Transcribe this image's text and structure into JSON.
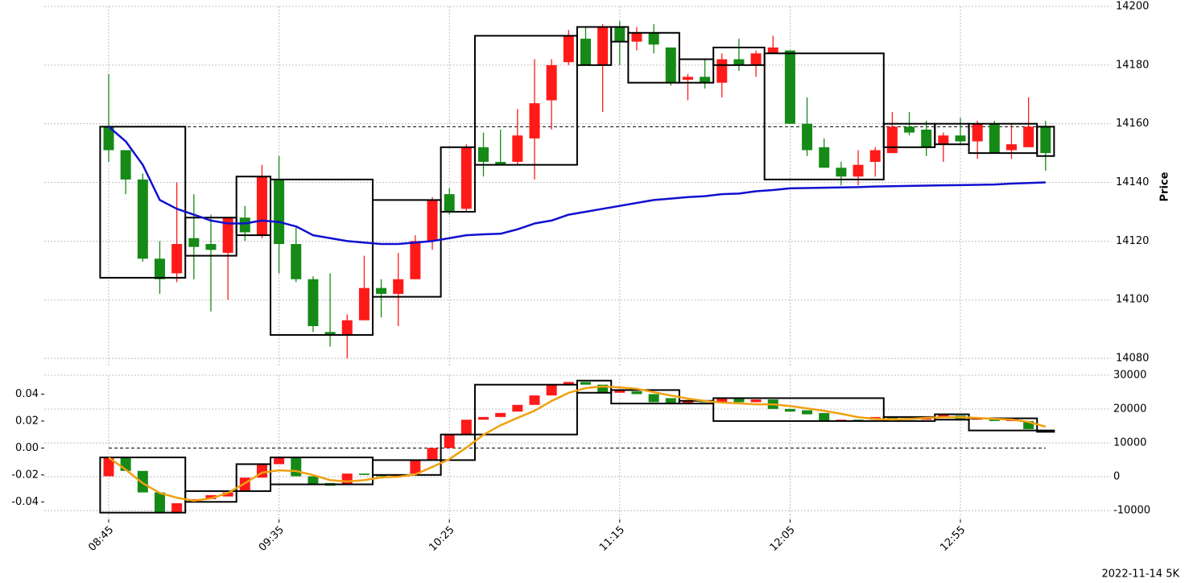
{
  "footer": "2022-11-14 5K",
  "chart_data": [
    {
      "type": "candlestick",
      "ylabel": "Price",
      "up_color": "#ff1a1a",
      "down_color": "#168a16",
      "grid": true,
      "ylim": [
        14077,
        14200
      ],
      "yticks": [
        14080,
        14100,
        14120,
        14140,
        14160,
        14180,
        14200
      ],
      "open": [
        14159,
        14151,
        14141,
        14114,
        14109,
        14121,
        14119,
        14116,
        14128,
        14122,
        14141,
        14119,
        14107,
        14089,
        14088,
        14093,
        14104,
        14102,
        14107,
        14120,
        14136,
        14131,
        14152,
        14147,
        14147,
        14155,
        14168,
        14181,
        14189,
        14180,
        14193,
        14188,
        14191,
        14186,
        14175,
        14176,
        14174,
        14182,
        14180,
        14184,
        14185,
        14160,
        14152,
        14145,
        14142,
        14147,
        14150,
        14159,
        14158,
        14153,
        14156,
        14154,
        14160,
        14151,
        14152,
        14159
      ],
      "high": [
        14177,
        14151,
        14143,
        14120,
        14140,
        14136,
        14129,
        14128,
        14132,
        14146,
        14149,
        14125,
        14108,
        14109,
        14095,
        14115,
        14107,
        14116,
        14122,
        14135,
        14138,
        14153,
        14157,
        14158,
        14165,
        14182,
        14182,
        14192,
        14193,
        14194,
        14195,
        14193,
        14194,
        14186,
        14177,
        14182,
        14184,
        14189,
        14185,
        14190,
        14185,
        14169,
        14155,
        14147,
        14151,
        14152,
        14164,
        14164,
        14161,
        14157,
        14162,
        14161,
        14161,
        14160,
        14169,
        14161
      ],
      "low": [
        14147,
        14136,
        14113,
        14102,
        14106,
        14107,
        14096,
        14100,
        14120,
        14121,
        14109,
        14106,
        14089,
        14084,
        14080,
        14093,
        14094,
        14091,
        14107,
        14117,
        14129,
        14130,
        14142,
        14146,
        14146,
        14141,
        14158,
        14180,
        14180,
        14164,
        14180,
        14185,
        14184,
        14173,
        14168,
        14172,
        14169,
        14178,
        14176,
        14184,
        14160,
        14149,
        14145,
        14139,
        14139,
        14142,
        14150,
        14156,
        14149,
        14147,
        14153,
        14148,
        14150,
        14148,
        14152,
        14144
      ],
      "close": [
        14151,
        14141,
        14114,
        14107,
        14119,
        14118,
        14117,
        14128,
        14123,
        14142,
        14119,
        14107,
        14091,
        14088,
        14093,
        14104,
        14102,
        14107,
        14120,
        14134,
        14130,
        14152,
        14147,
        14146,
        14156,
        14167,
        14180,
        14190,
        14180,
        14193,
        14188,
        14191,
        14187,
        14174,
        14176,
        14174,
        14182,
        14180,
        14184,
        14186,
        14160,
        14151,
        14145,
        14142,
        14146,
        14151,
        14159,
        14157,
        14152,
        14156,
        14154,
        14160,
        14150,
        14153,
        14159,
        14150
      ],
      "lines": [
        {
          "color": "#1010d0",
          "values": [
            14159,
            14154,
            14146,
            14134,
            14131,
            14129,
            14127,
            14126,
            14126,
            14127,
            14126.5,
            14125,
            14122,
            14121,
            14120,
            14119.5,
            14119,
            14119,
            14119.5,
            14120,
            14121,
            14122,
            14122.3,
            14122.5,
            14124,
            14126,
            14127,
            14129,
            14130,
            14131,
            14132,
            14133,
            14134,
            14134.5,
            14135,
            14135.3,
            14136,
            14136.2,
            14137,
            14137.4,
            14138,
            14138.1,
            14138.2,
            14138.3,
            14138.4,
            14138.6,
            14138.7,
            14138.8,
            14138.9,
            14139,
            14139.1,
            14139.2,
            14139.3,
            14139.6,
            14139.8,
            14140
          ]
        }
      ],
      "hline": 14159,
      "boxes": [
        {
          "start": 0,
          "end": 4,
          "high": 14159,
          "low": 14107.5
        },
        {
          "start": 5,
          "end": 7,
          "high": 14128,
          "low": 14115
        },
        {
          "start": 8,
          "end": 9,
          "high": 14142,
          "low": 14122
        },
        {
          "start": 10,
          "end": 15,
          "high": 14141,
          "low": 14088
        },
        {
          "start": 16,
          "end": 19,
          "high": 14134,
          "low": 14101
        },
        {
          "start": 20,
          "end": 21,
          "high": 14152,
          "low": 14130
        },
        {
          "start": 22,
          "end": 27,
          "high": 14190,
          "low": 14146
        },
        {
          "start": 28,
          "end": 29,
          "high": 14193,
          "low": 14180
        },
        {
          "start": 30,
          "end": 30,
          "high": 14193,
          "low": 14188
        },
        {
          "start": 31,
          "end": 33,
          "high": 14191,
          "low": 14174
        },
        {
          "start": 34,
          "end": 35,
          "high": 14182,
          "low": 14174
        },
        {
          "start": 36,
          "end": 38,
          "high": 14186,
          "low": 14180
        },
        {
          "start": 39,
          "end": 45,
          "high": 14184,
          "low": 14141
        },
        {
          "start": 46,
          "end": 48,
          "high": 14160,
          "low": 14152
        },
        {
          "start": 49,
          "end": 50,
          "high": 14160,
          "low": 14153
        },
        {
          "start": 51,
          "end": 54,
          "high": 14160,
          "low": 14150
        },
        {
          "start": 55,
          "end": 55,
          "high": 14159,
          "low": 14149
        }
      ]
    },
    {
      "type": "candlestick",
      "up_color": "#ff1a1a",
      "down_color": "#168a16",
      "grid": true,
      "categories": [
        "08:45",
        null,
        null,
        null,
        null,
        null,
        null,
        null,
        null,
        null,
        "09:35",
        null,
        null,
        null,
        null,
        null,
        null,
        null,
        null,
        null,
        "10:25",
        null,
        null,
        null,
        null,
        null,
        null,
        null,
        null,
        null,
        "11:15",
        null,
        null,
        null,
        null,
        null,
        null,
        null,
        null,
        null,
        "12:05",
        null,
        null,
        null,
        null,
        null,
        null,
        null,
        null,
        null,
        "12:55",
        null,
        null,
        null,
        null,
        null
      ],
      "ylim": [
        -0.053,
        0.054
      ],
      "yticks": [
        -0.04,
        -0.02,
        {
          "value": 0,
          "label": "0.00"
        },
        0.02,
        0.04
      ],
      "y2lim": [
        -12600,
        30000
      ],
      "y2ticks": [
        -10000,
        0,
        10000,
        20000,
        30000
      ],
      "open": [
        -0.021,
        -0.007,
        -0.017,
        -0.033,
        -0.048,
        -0.04,
        -0.038,
        -0.036,
        -0.032,
        -0.022,
        -0.012,
        -0.007,
        -0.021,
        -0.026,
        -0.027,
        -0.019,
        -0.02,
        -0.021,
        -0.019,
        -0.009,
        0.0,
        0.01,
        0.021,
        0.023,
        0.027,
        0.032,
        0.039,
        0.047,
        0.049,
        0.047,
        0.041,
        0.042,
        0.04,
        0.037,
        0.033,
        0.035,
        0.034,
        0.037,
        0.034,
        0.036,
        0.029,
        0.028,
        0.026,
        0.02,
        0.021,
        0.021,
        0.023,
        0.022,
        0.021,
        0.023,
        0.024,
        0.021,
        0.022,
        0.02,
        0.02,
        0.013
      ],
      "close": [
        -0.007,
        -0.017,
        -0.033,
        -0.048,
        -0.041,
        -0.038,
        -0.035,
        -0.033,
        -0.022,
        -0.012,
        -0.007,
        -0.021,
        -0.027,
        -0.028,
        -0.019,
        -0.02,
        -0.021,
        -0.02,
        -0.009,
        0.0,
        0.01,
        0.021,
        0.023,
        0.026,
        0.032,
        0.039,
        0.047,
        0.049,
        0.047,
        0.041,
        0.043,
        0.04,
        0.034,
        0.033,
        0.035,
        0.034,
        0.037,
        0.034,
        0.036,
        0.029,
        0.027,
        0.025,
        0.02,
        0.021,
        0.02,
        0.023,
        0.022,
        0.021,
        0.023,
        0.025,
        0.021,
        0.022,
        0.02,
        0.021,
        0.014,
        0.012
      ],
      "lines": [
        {
          "color": "#f0a010",
          "axis": "y2",
          "values": [
            5700,
            2100,
            -1900,
            -4800,
            -6200,
            -7100,
            -6400,
            -4800,
            -1900,
            1200,
            1900,
            1700,
            500,
            -1000,
            -1400,
            -1000,
            -200,
            0,
            700,
            2900,
            5200,
            8600,
            12400,
            15200,
            17400,
            19500,
            22400,
            24800,
            26200,
            26700,
            26400,
            26000,
            25000,
            24000,
            23100,
            22400,
            21900,
            21700,
            21400,
            21400,
            20900,
            20200,
            19500,
            18600,
            17600,
            17100,
            16900,
            17100,
            17400,
            17600,
            17600,
            17400,
            17100,
            16900,
            16200,
            14800
          ]
        }
      ],
      "hline": 0,
      "boxes": [
        {
          "start": 0,
          "end": 4,
          "high": -0.007,
          "low": -0.048
        },
        {
          "start": 5,
          "end": 7,
          "high": -0.032,
          "low": -0.04
        },
        {
          "start": 8,
          "end": 9,
          "high": -0.012,
          "low": -0.032
        },
        {
          "start": 10,
          "end": 15,
          "high": -0.007,
          "low": -0.027
        },
        {
          "start": 16,
          "end": 19,
          "high": -0.009,
          "low": -0.02
        },
        {
          "start": 20,
          "end": 21,
          "high": 0.01,
          "low": -0.009
        },
        {
          "start": 22,
          "end": 27,
          "high": 0.047,
          "low": 0.01
        },
        {
          "start": 28,
          "end": 29,
          "high": 0.05,
          "low": 0.041
        },
        {
          "start": 30,
          "end": 33,
          "high": 0.043,
          "low": 0.033
        },
        {
          "start": 34,
          "end": 35,
          "high": 0.035,
          "low": 0.033
        },
        {
          "start": 36,
          "end": 45,
          "high": 0.037,
          "low": 0.02
        },
        {
          "start": 46,
          "end": 48,
          "high": 0.023,
          "low": 0.02
        },
        {
          "start": 49,
          "end": 50,
          "high": 0.025,
          "low": 0.021
        },
        {
          "start": 51,
          "end": 54,
          "high": 0.022,
          "low": 0.013
        },
        {
          "start": 55,
          "end": 55,
          "high": 0.013,
          "low": 0.012
        }
      ]
    }
  ]
}
